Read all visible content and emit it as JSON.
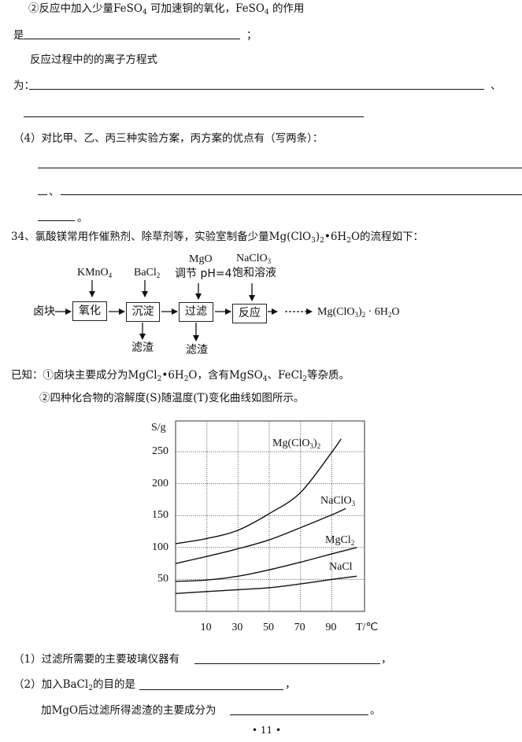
{
  "q3": {
    "line1_a": "②反应中加入少量FeSO",
    "sub4": "4",
    "line1_b": "可加速铜的氧化，FeSO",
    "line1_c": "的作用",
    "line2_prefix": "是",
    "line2_suffix": "；",
    "line3": "反应过程中的的离子方程式",
    "line4_prefix": "为：",
    "line4_suffix": "、"
  },
  "q4": {
    "prompt": "（4）对比甲、乙、丙三种实验方案，丙方案的优点有（写两条）：",
    "sep": "、",
    "end": "。"
  },
  "q34": {
    "intro_a": "34、氯酸镁常用作催熟剂、除草剂等，实验室制备少量Mg(ClO",
    "intro_sub3": "3",
    "intro_b": ")",
    "intro_sub2": "2",
    "intro_c": "•6H",
    "intro_d": "O的流程如下：",
    "known_a": "已知：①卤块主要成分为MgCl",
    "known_b": "•6H",
    "known_c": "O，含有MgSO",
    "known_d": "、FeCl",
    "known_e": "等杂质。",
    "known2": "②四种化合物的溶解度(S)随温度(T)变化曲线如图所示。",
    "q1": "（1）过滤所需要的主要玻璃仪器有",
    "q1_end": "，",
    "q2_a": "（2）加入BaCl",
    "q2_b": "的目的是",
    "q2_end": "，",
    "q3": "加MgO后过滤所得滤渣的主要成分为",
    "q3_end": "。"
  },
  "flow": {
    "start": "卤块",
    "steps": [
      "氧化",
      "沉淀",
      "过滤",
      "反应"
    ],
    "reagent_kmno4": "KMnO",
    "reagent_bacl": "BaCl",
    "reagent_mgo": "MgO",
    "reagent_mgo_note": "调节 pH=4",
    "reagent_naclo": "NaClO",
    "reagent_naclo_note": "饱和溶液",
    "residue": "滤渣",
    "product_a": "Mg(ClO",
    "product_b": ")",
    "product_c": " · 6H",
    "product_d": "O",
    "sub2": "2",
    "sub3": "3",
    "sub4": "4"
  },
  "chart_data": {
    "type": "line",
    "ylabel": "S/g",
    "xlabel": "T/℃",
    "x_ticks": [
      "10",
      "30",
      "50",
      "70",
      "90"
    ],
    "y_ticks": [
      "50",
      "100",
      "150",
      "200",
      "250"
    ],
    "grid": true,
    "xlim": [
      -10,
      111
    ],
    "ylim": [
      0,
      298
    ],
    "series": [
      {
        "name": "Mg(ClO3)2",
        "label_a": "Mg(ClO",
        "label_b": ")",
        "points": [
          [
            -10,
            106
          ],
          [
            10,
            114
          ],
          [
            30,
            127
          ],
          [
            50,
            153
          ],
          [
            70,
            186
          ],
          [
            90,
            249
          ],
          [
            96,
            270
          ]
        ]
      },
      {
        "name": "NaClO3",
        "label_a": "NaClO",
        "label_b": "",
        "points": [
          [
            -10,
            75
          ],
          [
            10,
            86
          ],
          [
            30,
            98
          ],
          [
            50,
            112
          ],
          [
            70,
            131
          ],
          [
            90,
            151
          ],
          [
            99,
            161
          ]
        ]
      },
      {
        "name": "MgCl2",
        "label_a": "MgCl",
        "label_b": "",
        "points": [
          [
            -10,
            47
          ],
          [
            10,
            49
          ],
          [
            30,
            55
          ],
          [
            50,
            65
          ],
          [
            70,
            77
          ],
          [
            90,
            90
          ],
          [
            106,
            100
          ]
        ]
      },
      {
        "name": "NaCl",
        "label_a": "NaCl",
        "label_b": "",
        "points": [
          [
            -10,
            28
          ],
          [
            10,
            31
          ],
          [
            30,
            34
          ],
          [
            50,
            37
          ],
          [
            70,
            43
          ],
          [
            90,
            50
          ],
          [
            106,
            55
          ]
        ]
      }
    ]
  },
  "page_number": "• 11 •"
}
